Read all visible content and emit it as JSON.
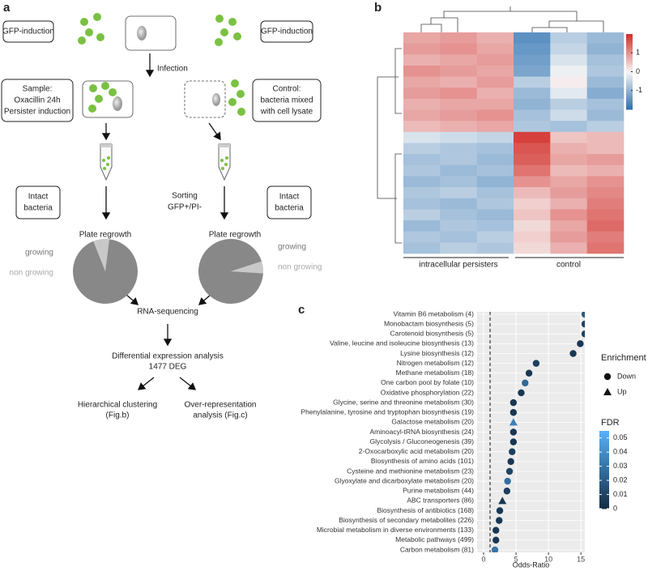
{
  "diagram": {
    "panel_label": "a",
    "gfp_left": "GFP-induction",
    "gfp_right": "GFP-induction",
    "infection": "Infection",
    "sample": [
      "Sample:",
      "Oxacillin 24h",
      "Persister induction"
    ],
    "control": [
      "Control:",
      "bacteria mixed",
      "with cell lysate"
    ],
    "intact_left": [
      "Intact",
      "bacteria"
    ],
    "intact_right": [
      "Intact",
      "bacteria"
    ],
    "sorting": [
      "Sorting",
      "GFP+/PI-"
    ],
    "pies": [
      {
        "title": "Plate regrowth",
        "labels": [
          "growing",
          "non growing"
        ],
        "values": [
          8,
          92
        ]
      },
      {
        "title": "Plate regrowth",
        "labels": [
          "growing",
          "non growing"
        ],
        "values": [
          6,
          94
        ]
      }
    ],
    "rna": "RNA-sequencing",
    "dea": [
      "Differential expression analysis",
      "1477 DEG"
    ],
    "hc": [
      "Hierarchical clustering",
      "(Fig.b)"
    ],
    "ora": [
      "Over-representation",
      "analysis (Fig.c)"
    ]
  },
  "chart_data": [
    {
      "type": "heatmap",
      "panel_label": "b",
      "column_groups": [
        "intracellular persisters",
        "control"
      ],
      "rows": [
        [
          0.8,
          0.9,
          0.7,
          -1.5,
          -0.6,
          -0.9
        ],
        [
          0.9,
          1.0,
          0.8,
          -1.4,
          -0.5,
          -1.0
        ],
        [
          0.7,
          0.8,
          0.9,
          -1.3,
          -0.3,
          -0.8
        ],
        [
          1.0,
          0.9,
          0.8,
          -1.2,
          -0.1,
          -0.7
        ],
        [
          0.8,
          0.7,
          0.9,
          -0.6,
          0.1,
          -0.9
        ],
        [
          0.9,
          1.0,
          0.7,
          -0.9,
          -0.2,
          -1.1
        ],
        [
          0.7,
          0.8,
          0.8,
          -1.0,
          -0.6,
          -0.8
        ],
        [
          0.8,
          0.9,
          1.0,
          -0.8,
          -0.4,
          -0.9
        ],
        [
          0.6,
          0.7,
          0.8,
          -0.7,
          -0.8,
          -0.6
        ],
        [
          -0.3,
          -0.4,
          -0.5,
          1.8,
          0.5,
          0.6
        ],
        [
          -0.6,
          -0.7,
          -0.8,
          1.6,
          0.7,
          0.6
        ],
        [
          -0.8,
          -0.7,
          -0.9,
          1.5,
          0.8,
          0.9
        ],
        [
          -0.7,
          -0.9,
          -0.8,
          1.3,
          0.6,
          0.7
        ],
        [
          -0.9,
          -0.8,
          -1.0,
          1.0,
          0.8,
          1.0
        ],
        [
          -0.7,
          -0.6,
          -0.8,
          0.6,
          0.9,
          1.1
        ],
        [
          -0.8,
          -0.9,
          -0.7,
          0.4,
          0.7,
          1.2
        ],
        [
          -0.6,
          -0.8,
          -0.9,
          0.5,
          1.0,
          1.3
        ],
        [
          -0.9,
          -0.7,
          -0.8,
          0.3,
          0.8,
          1.4
        ],
        [
          -0.7,
          -0.8,
          -0.6,
          0.4,
          0.9,
          1.2
        ],
        [
          -0.8,
          -0.6,
          -0.7,
          0.3,
          0.7,
          1.3
        ]
      ],
      "zlim": [
        -2,
        2
      ],
      "zticks": [
        1,
        0,
        -1
      ]
    },
    {
      "type": "dot",
      "panel_label": "c",
      "xlabel": "Odds-Ratio",
      "xlim": [
        -1,
        15.6
      ],
      "xticks": [
        0,
        5,
        10,
        15
      ],
      "reference_line": 1,
      "categories": [
        "Vitamin B6 metabolism (4)",
        "Monobactam biosynthesis (5)",
        "Carotenoid biosynthesis (5)",
        "Valine, leucine and isoleucine biosynthesis (13)",
        "Lysine biosynthesis (12)",
        "Nitrogen metabolism (12)",
        "Methane metabolism (18)",
        "One carbon pool by folate (10)",
        "Oxidative phosphorylation (22)",
        "Glycine, serine and threonine metabolism (30)",
        "Phenylalanine, tyrosine and tryptophan biosynthesis (19)",
        "Galactose metabolism (20)",
        "Aminoacyl-tRNA biosynthesis (24)",
        "Glycolysis / Gluconeogenesis (39)",
        "2-Oxocarboxylic acid metabolism (20)",
        "Biosynthesis of amino acids (101)",
        "Cysteine and methionine metabolism (23)",
        "Glyoxylate and dicarboxylate metabolism (20)",
        "Purine metabolism (44)",
        "ABC transporters (86)",
        "Biosynthesis of antibiotics (168)",
        "Biosynthesis of secondary metabolites (226)",
        "Microbial metabolism in diverse environments (133)",
        "Metabolic pathways (499)",
        "Carbon metabolism (81)"
      ],
      "values": [
        15.6,
        15.6,
        15.6,
        14.9,
        13.8,
        8.1,
        7.0,
        6.4,
        5.8,
        4.6,
        4.6,
        4.6,
        4.6,
        4.6,
        4.4,
        4.2,
        4.0,
        3.7,
        3.6,
        2.9,
        2.5,
        2.4,
        1.9,
        1.9,
        1.75
      ],
      "fdr": [
        0.02,
        0.01,
        0.01,
        0.005,
        0.005,
        0.008,
        0.005,
        0.025,
        0.005,
        0.005,
        0.005,
        0.035,
        0.005,
        0.005,
        0.008,
        0.005,
        0.01,
        0.028,
        0.008,
        0.005,
        0.005,
        0.005,
        0.005,
        0.005,
        0.03
      ],
      "enrichment": [
        "Down",
        "Down",
        "Down",
        "Down",
        "Down",
        "Down",
        "Down",
        "Down",
        "Down",
        "Down",
        "Down",
        "Up",
        "Down",
        "Down",
        "Down",
        "Down",
        "Down",
        "Down",
        "Down",
        "Up",
        "Down",
        "Down",
        "Down",
        "Down",
        "Down"
      ],
      "legend_shape_title": "Enrichment",
      "legend_shapes": [
        "Down",
        "Up"
      ],
      "legend_color_title": "FDR",
      "fdr_lim": [
        0,
        0.055
      ],
      "fdr_ticks": [
        0.05,
        0.04,
        0.03,
        0.02,
        0.01,
        0
      ],
      "fdr_colors": [
        "#132B43",
        "#56B1F7"
      ]
    }
  ]
}
